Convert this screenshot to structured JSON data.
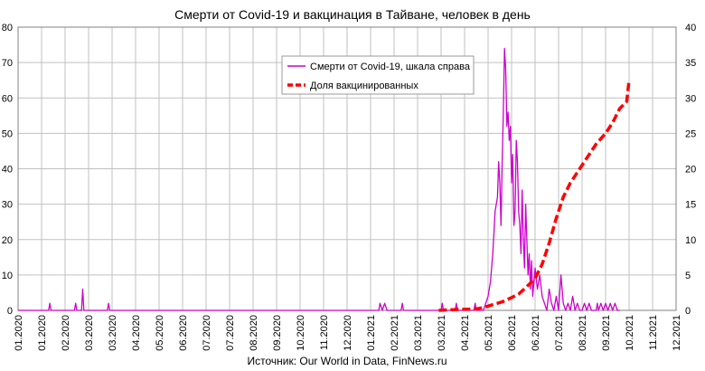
{
  "chart_data": {
    "type": "line",
    "title": "Смерти от Covid-19 и вакцинация в Тайване, человек в день",
    "source": "Источник: Our World in Data, FinNews.ru",
    "xlabel": "",
    "ylabel": "",
    "x_ticks": [
      "01.2020",
      "01.2020",
      "02.2020",
      "03.2020",
      "03.2020",
      "04.2020",
      "05.2020",
      "06.2020",
      "07.2020",
      "07.2020",
      "08.2020",
      "09.2020",
      "10.2020",
      "11.2020",
      "12.2020",
      "01.2021",
      "02.2021",
      "03.2021",
      "03.2021",
      "04.2021",
      "05.2021",
      "06.2021",
      "06.2021",
      "07.2021",
      "08.2021",
      "09.2021",
      "10.2021",
      "11.2021",
      "12.2021"
    ],
    "y_left": {
      "min": 0,
      "max": 80,
      "ticks": [
        0,
        10,
        20,
        30,
        40,
        50,
        60,
        70,
        80
      ]
    },
    "y_right": {
      "min": 0,
      "max": 40,
      "ticks": [
        0,
        5,
        10,
        15,
        20,
        25,
        30,
        35,
        40
      ]
    },
    "grid": true,
    "legend_position": "top-center",
    "series": [
      {
        "name": "Смерти от Covid-19, шкала справа",
        "axis": "right",
        "color": "#cc00cc",
        "style": "solid",
        "points": [
          [
            0,
            0
          ],
          [
            1.3,
            0
          ],
          [
            1.35,
            1
          ],
          [
            1.4,
            0
          ],
          [
            2.4,
            0
          ],
          [
            2.45,
            1
          ],
          [
            2.5,
            0
          ],
          [
            2.7,
            0
          ],
          [
            2.75,
            3
          ],
          [
            2.8,
            0
          ],
          [
            3.8,
            0
          ],
          [
            3.85,
            1
          ],
          [
            3.9,
            0
          ],
          [
            15,
            0
          ],
          [
            15.35,
            0
          ],
          [
            15.4,
            1
          ],
          [
            15.5,
            0
          ],
          [
            15.6,
            1
          ],
          [
            15.7,
            0
          ],
          [
            16.3,
            0
          ],
          [
            16.35,
            1
          ],
          [
            16.4,
            0
          ],
          [
            18.0,
            0
          ],
          [
            18.05,
            1
          ],
          [
            18.1,
            0
          ],
          [
            18.6,
            0
          ],
          [
            18.65,
            1
          ],
          [
            18.7,
            0
          ],
          [
            19.4,
            0
          ],
          [
            19.45,
            1
          ],
          [
            19.5,
            0
          ],
          [
            19.8,
            0
          ],
          [
            19.9,
            1
          ],
          [
            20.0,
            2
          ],
          [
            20.1,
            4
          ],
          [
            20.2,
            8
          ],
          [
            20.3,
            14
          ],
          [
            20.4,
            16
          ],
          [
            20.45,
            21
          ],
          [
            20.5,
            18
          ],
          [
            20.55,
            12
          ],
          [
            20.6,
            21
          ],
          [
            20.65,
            28
          ],
          [
            20.7,
            37
          ],
          [
            20.75,
            34
          ],
          [
            20.8,
            26
          ],
          [
            20.85,
            28
          ],
          [
            20.9,
            24
          ],
          [
            20.95,
            26
          ],
          [
            21.0,
            18
          ],
          [
            21.05,
            22
          ],
          [
            21.1,
            12
          ],
          [
            21.15,
            14
          ],
          [
            21.2,
            24
          ],
          [
            21.25,
            21
          ],
          [
            21.3,
            14
          ],
          [
            21.35,
            12
          ],
          [
            21.4,
            8
          ],
          [
            21.45,
            17
          ],
          [
            21.5,
            10
          ],
          [
            21.55,
            6
          ],
          [
            21.6,
            15
          ],
          [
            21.65,
            10
          ],
          [
            21.7,
            5
          ],
          [
            21.75,
            8
          ],
          [
            21.8,
            3
          ],
          [
            21.85,
            7
          ],
          [
            21.9,
            2
          ],
          [
            22.0,
            6
          ],
          [
            22.1,
            3
          ],
          [
            22.2,
            5
          ],
          [
            22.3,
            2
          ],
          [
            22.4,
            1
          ],
          [
            22.5,
            0
          ],
          [
            22.6,
            3
          ],
          [
            22.7,
            1
          ],
          [
            22.8,
            0
          ],
          [
            22.9,
            2
          ],
          [
            23.0,
            0
          ],
          [
            23.1,
            5
          ],
          [
            23.2,
            1
          ],
          [
            23.3,
            0
          ],
          [
            23.4,
            1
          ],
          [
            23.5,
            0
          ],
          [
            23.6,
            2
          ],
          [
            23.7,
            0
          ],
          [
            23.8,
            1
          ],
          [
            23.9,
            0
          ],
          [
            24.0,
            0
          ],
          [
            24.1,
            1
          ],
          [
            24.2,
            0
          ],
          [
            24.3,
            1
          ],
          [
            24.4,
            0
          ],
          [
            24.6,
            0
          ],
          [
            24.65,
            1
          ],
          [
            24.7,
            0
          ],
          [
            24.8,
            1
          ],
          [
            24.9,
            0
          ],
          [
            25.0,
            1
          ],
          [
            25.1,
            0
          ],
          [
            25.2,
            1
          ],
          [
            25.3,
            0
          ],
          [
            25.4,
            1
          ],
          [
            25.5,
            0
          ],
          [
            25.6,
            0
          ]
        ]
      },
      {
        "name": "Доля вакцинированных",
        "axis": "right",
        "color": "#ff0000",
        "style": "dashed",
        "points": [
          [
            17.9,
            0
          ],
          [
            18.5,
            0.1
          ],
          [
            19.0,
            0.15
          ],
          [
            19.5,
            0.2
          ],
          [
            19.8,
            0.4
          ],
          [
            20.2,
            0.8
          ],
          [
            20.6,
            1.2
          ],
          [
            21.0,
            1.8
          ],
          [
            21.3,
            2.3
          ],
          [
            21.6,
            3.2
          ],
          [
            22.0,
            4.5
          ],
          [
            22.3,
            6.5
          ],
          [
            22.6,
            9.5
          ],
          [
            22.9,
            13
          ],
          [
            23.2,
            16
          ],
          [
            23.5,
            18
          ],
          [
            23.8,
            19.5
          ],
          [
            24.0,
            20.5
          ],
          [
            24.3,
            22
          ],
          [
            24.6,
            23.5
          ],
          [
            25.0,
            25
          ],
          [
            25.3,
            26.5
          ],
          [
            25.6,
            28.5
          ],
          [
            25.9,
            29.5
          ],
          [
            26.0,
            32.5
          ]
        ]
      }
    ]
  }
}
